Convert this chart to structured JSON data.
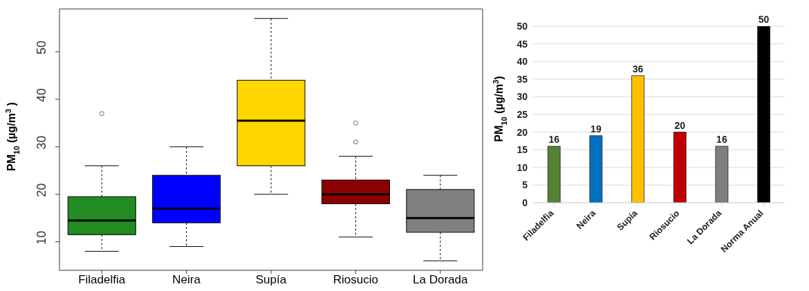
{
  "chart_data": [
    {
      "type": "box",
      "ylabel": "PM$_{10}$ (µg/m$^{3}$ )",
      "categories": [
        "Filadelfia",
        "Neira",
        "Supía",
        "Riosucio",
        "La Dorada"
      ],
      "colors": [
        "#228b22",
        "#0000ff",
        "#ffd700",
        "#8b0000",
        "#808080"
      ],
      "boxes": [
        {
          "low": 8,
          "q1": 11.5,
          "median": 14.5,
          "q3": 19.5,
          "high": 26,
          "outliers": [
            37
          ]
        },
        {
          "low": 9,
          "q1": 14,
          "median": 17,
          "q3": 24,
          "high": 30
        },
        {
          "low": 20,
          "q1": 26,
          "median": 35.5,
          "q3": 44,
          "high": 57
        },
        {
          "low": 11,
          "q1": 18,
          "median": 20,
          "q3": 23,
          "high": 28,
          "outliers": [
            31,
            35
          ]
        },
        {
          "low": 6,
          "q1": 12,
          "median": 15,
          "q3": 21,
          "high": 24
        }
      ],
      "ylim": [
        4,
        59
      ],
      "yticks": [
        10,
        20,
        30,
        40,
        50
      ],
      "grid": false
    },
    {
      "type": "bar",
      "ylabel": "PM$_{10}$ (µg/m$^{3}$)",
      "categories": [
        "Filadelfia",
        "Neira",
        "Supía",
        "Riosucio",
        "La Dorada",
        "Norma Anual"
      ],
      "values": [
        16,
        19,
        36,
        20,
        16,
        50
      ],
      "colors": [
        "#548235",
        "#0070c0",
        "#ffc000",
        "#c00000",
        "#7f7f7f",
        "#000000"
      ],
      "ylim": [
        0,
        50
      ],
      "yticks": [
        0,
        5,
        10,
        15,
        20,
        25,
        30,
        35,
        40,
        45,
        50
      ],
      "grid": "y",
      "data_labels": true
    }
  ]
}
